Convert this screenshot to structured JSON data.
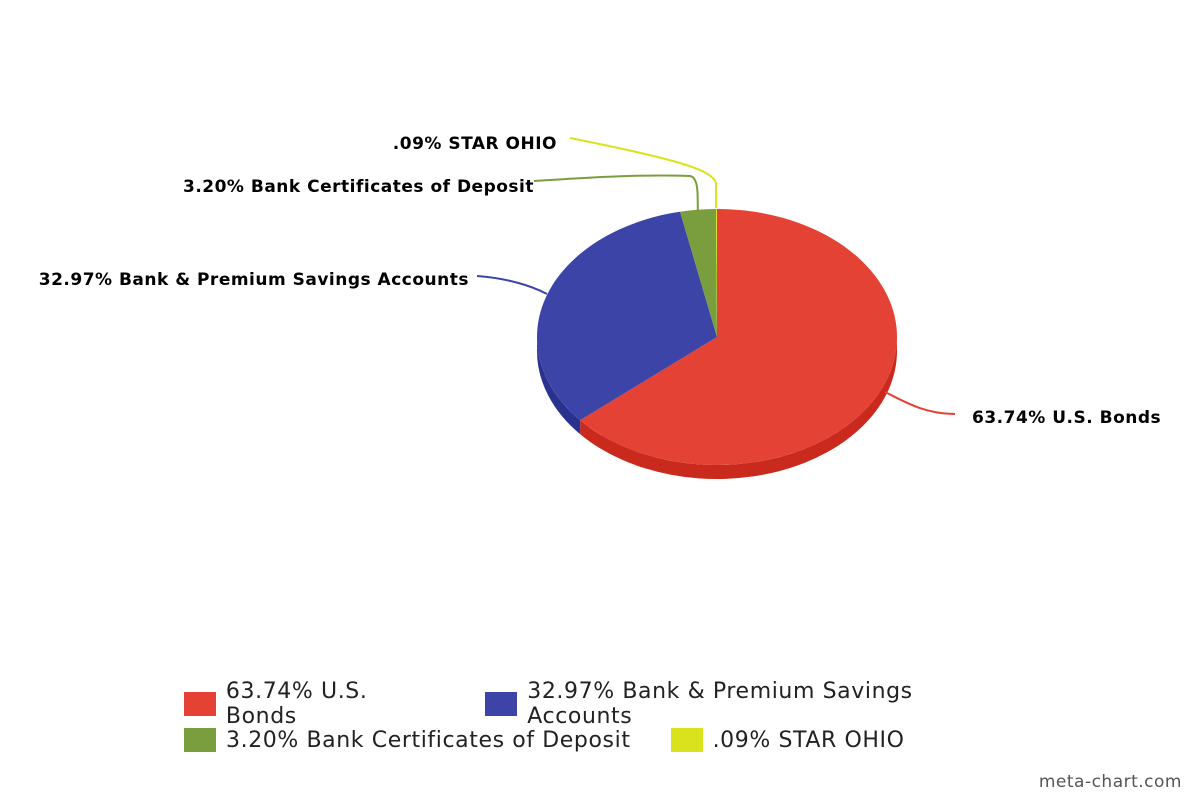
{
  "chart_data": {
    "type": "pie",
    "categories": [
      "U.S. Bonds",
      "Bank & Premium Savings Accounts",
      "Bank Certificates of Deposit",
      "STAR OHIO"
    ],
    "values": [
      63.74,
      32.97,
      3.2,
      0.09
    ],
    "labels": [
      "63.74% U.S. Bonds",
      "32.97% Bank & Premium Savings Accounts",
      "3.20% Bank Certificates of Deposit",
      ".09% STAR OHIO"
    ],
    "colors": [
      "#e34234",
      "#3c44a8",
      "#7a9e3e",
      "#d9e21d"
    ],
    "side_colors": [
      "#c92a1d",
      "#2a3290",
      "#5d7f28",
      "#b8c010"
    ],
    "legend_placement": "bottom"
  },
  "legend": {
    "items": [
      {
        "label": "63.74% U.S. Bonds",
        "color": "#e34234"
      },
      {
        "label": "32.97% Bank & Premium Savings Accounts",
        "color": "#3c44a8"
      },
      {
        "label": "3.20% Bank Certificates of Deposit",
        "color": "#7a9e3e"
      },
      {
        "label": ".09% STAR OHIO",
        "color": "#d9e21d"
      }
    ]
  },
  "watermark": "meta-chart.com"
}
